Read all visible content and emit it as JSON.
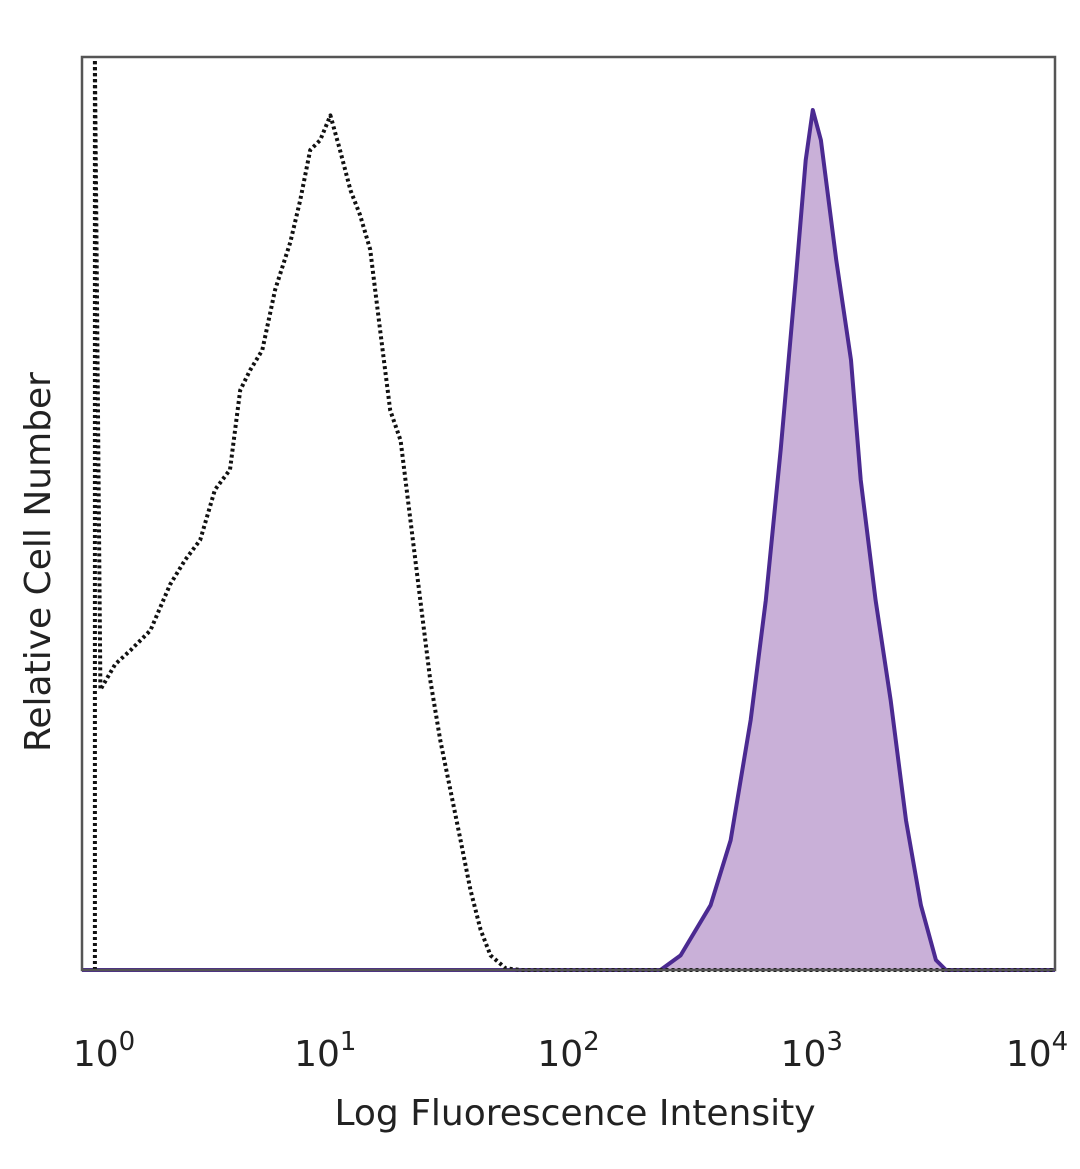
{
  "chart_data": {
    "type": "line",
    "title": "",
    "xlabel": "Log Fluorescence Intensity",
    "ylabel": "Relative Cell Number",
    "x_scale": "log",
    "xlim": [
      1,
      10000
    ],
    "ylim": [
      0,
      100
    ],
    "grid": false,
    "x_ticks": [
      {
        "base": "10",
        "exp": "0",
        "value": 1
      },
      {
        "base": "10",
        "exp": "1",
        "value": 10
      },
      {
        "base": "10",
        "exp": "2",
        "value": 100
      },
      {
        "base": "10",
        "exp": "3",
        "value": 1000
      },
      {
        "base": "10",
        "exp": "4",
        "value": 10000
      }
    ],
    "series": [
      {
        "style": "dotted",
        "color": "#111111",
        "filled": false,
        "x": [
          1.13,
          1.13,
          1.19,
          1.37,
          1.58,
          1.91,
          2.3,
          2.65,
          3.06,
          3.52,
          4.06,
          4.47,
          4.91,
          5.51,
          6.22,
          7.18,
          7.89,
          8.67,
          9.53,
          10.5,
          11.5,
          12.7,
          13.9,
          15.3,
          16.8,
          18.5,
          20.4,
          22.4,
          24.6,
          27.0,
          29.7,
          32.7,
          36.0,
          39.5,
          43.5,
          47.8,
          55.1,
          63.4,
          10000
        ],
        "y": [
          0,
          99.7,
          30.7,
          33.5,
          35.0,
          37.2,
          42.2,
          44.9,
          47.1,
          52.6,
          54.8,
          63.5,
          65.7,
          67.9,
          74.5,
          79.7,
          84.3,
          89.8,
          90.9,
          93.6,
          89.8,
          85.4,
          82.7,
          78.9,
          70.1,
          61.3,
          58.0,
          49.3,
          40.5,
          31.8,
          25.2,
          19.7,
          14.2,
          8.8,
          4.4,
          1.6,
          0.2,
          0,
          0
        ]
      },
      {
        "style": "solid",
        "color": "#4b2a91",
        "fill": "#c9b0d8",
        "filled": true,
        "x": [
          1,
          239,
          289,
          384,
          464,
          561,
          647,
          745,
          859,
          944,
          1010,
          1090,
          1260,
          1450,
          1590,
          1830,
          2110,
          2440,
          2810,
          3240,
          3560,
          10000
        ],
        "y": [
          0,
          0,
          1.6,
          7.1,
          14.2,
          27.4,
          40.5,
          57.0,
          75.6,
          88.7,
          94.2,
          90.9,
          77.8,
          66.8,
          53.7,
          40.5,
          29.6,
          16.4,
          7.1,
          1.1,
          0,
          0
        ]
      }
    ]
  }
}
